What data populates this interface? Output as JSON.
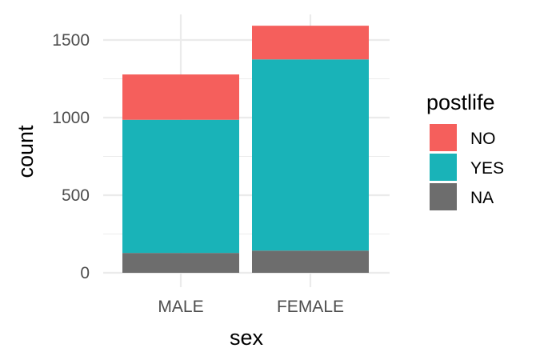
{
  "chart_data": {
    "type": "bar",
    "stacked": true,
    "categories": [
      "MALE",
      "FEMALE"
    ],
    "series": [
      {
        "name": "NA",
        "color": "#6d6d6d",
        "values": [
          128,
          143
        ]
      },
      {
        "name": "YES",
        "color": "#19b3b8",
        "values": [
          858,
          1232
        ]
      },
      {
        "name": "NO",
        "color": "#f55f5c",
        "values": [
          292,
          217
        ]
      }
    ],
    "xlabel": "sex",
    "ylabel": "count",
    "ylim": [
      0,
      1600
    ],
    "yticks": [
      0,
      500,
      1000,
      1500
    ],
    "grid": true,
    "legend": {
      "title": "postlife",
      "position": "right",
      "order": [
        "NO",
        "YES",
        "NA"
      ]
    }
  }
}
